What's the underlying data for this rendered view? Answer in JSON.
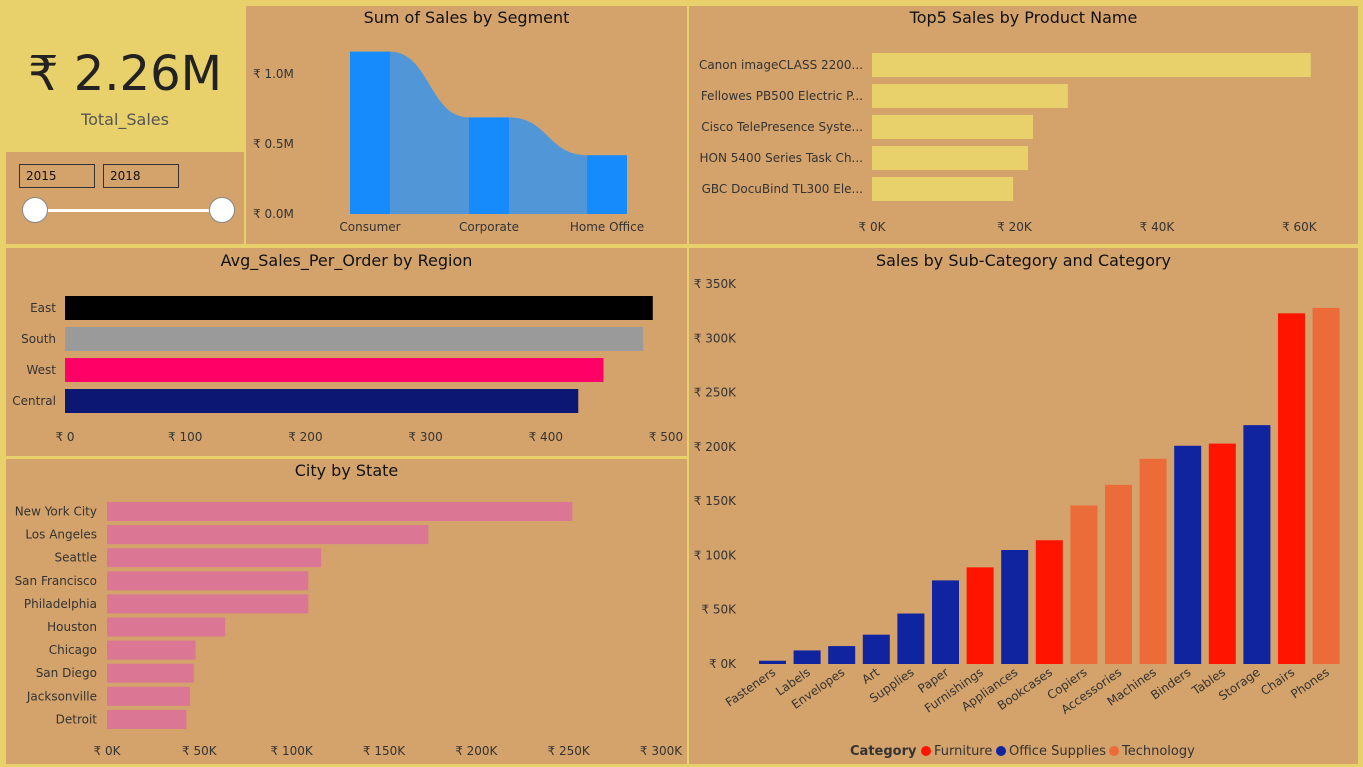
{
  "kpi": {
    "value": "₹ 2.26M",
    "label": "Total_Sales"
  },
  "filter": {
    "start_year": "2015",
    "end_year": "2018"
  },
  "colors": {
    "background": "#e8d06a",
    "panel": "#d4a36c",
    "segment_bar": "#168cfc",
    "segment_ribbon": "#5197d8",
    "top5_bar": "#e8d06a",
    "city_bar": "#db7694",
    "region_east": "#000000",
    "region_south": "#9a9a9a",
    "region_west": "#ff0066",
    "region_central": "#0c1673",
    "furniture": "#ff1400",
    "office_supplies": "#1024a0",
    "technology": "#eb6b39"
  },
  "chart_data": [
    {
      "id": "segment",
      "type": "bar",
      "title": "Sum of Sales by Segment",
      "categories": [
        "Consumer",
        "Corporate",
        "Home Office"
      ],
      "values": [
        1160000,
        690000,
        420000
      ],
      "yticks": [
        0,
        500000,
        1000000
      ],
      "ytick_labels": [
        "₹ 0.0M",
        "₹ 0.5M",
        "₹ 1.0M"
      ],
      "ylim": [
        0,
        1200000
      ]
    },
    {
      "id": "top5",
      "type": "bar",
      "orientation": "horizontal",
      "title": "Top5 Sales by Product Name",
      "categories": [
        "Canon imageCLASS 2200...",
        "Fellowes PB500 Electric P...",
        "Cisco TelePresence Syste...",
        "HON 5400 Series Task Ch...",
        "GBC DocuBind TL300 Ele..."
      ],
      "values": [
        61600,
        27500,
        22600,
        21900,
        19800
      ],
      "xticks": [
        0,
        20000,
        40000,
        60000
      ],
      "xtick_labels": [
        "₹ 0K",
        "₹ 20K",
        "₹ 40K",
        "₹ 60K"
      ],
      "xlim": [
        0,
        65000
      ]
    },
    {
      "id": "region",
      "type": "bar",
      "orientation": "horizontal",
      "title": "Avg_Sales_Per_Order by Region",
      "categories": [
        "East",
        "South",
        "West",
        "Central"
      ],
      "values": [
        489,
        481,
        448,
        427
      ],
      "xticks": [
        0,
        100,
        200,
        300,
        400,
        500
      ],
      "xtick_labels": [
        "₹ 0",
        "₹ 100",
        "₹ 200",
        "₹ 300",
        "₹ 400",
        "₹ 500"
      ],
      "xlim": [
        0,
        500
      ]
    },
    {
      "id": "city",
      "type": "bar",
      "orientation": "horizontal",
      "title": "City by State",
      "categories": [
        "New York City",
        "Los Angeles",
        "Seattle",
        "San Francisco",
        "Philadelphia",
        "Houston",
        "Chicago",
        "San Diego",
        "Jacksonville",
        "Detroit"
      ],
      "values": [
        252000,
        174000,
        116000,
        109000,
        109000,
        64000,
        48000,
        47000,
        45000,
        43000
      ],
      "xticks": [
        0,
        50000,
        100000,
        150000,
        200000,
        250000,
        300000
      ],
      "xtick_labels": [
        "₹ 0K",
        "₹ 50K",
        "₹ 100K",
        "₹ 150K",
        "₹ 200K",
        "₹ 250K",
        "₹ 300K"
      ],
      "xlim": [
        0,
        300000
      ]
    },
    {
      "id": "subcat",
      "type": "bar",
      "title": "Sales by Sub-Category and Category",
      "categories": [
        "Fasteners",
        "Labels",
        "Envelopes",
        "Art",
        "Supplies",
        "Paper",
        "Furnishings",
        "Appliances",
        "Bookcases",
        "Copiers",
        "Accessories",
        "Machines",
        "Binders",
        "Tables",
        "Storage",
        "Chairs",
        "Phones"
      ],
      "values": [
        3000,
        12500,
        16500,
        27000,
        46500,
        77000,
        89000,
        105000,
        114000,
        146000,
        165000,
        189000,
        201000,
        203000,
        220000,
        323000,
        328000
      ],
      "category_group": [
        "Office Supplies",
        "Office Supplies",
        "Office Supplies",
        "Office Supplies",
        "Office Supplies",
        "Office Supplies",
        "Furniture",
        "Office Supplies",
        "Furniture",
        "Technology",
        "Technology",
        "Technology",
        "Office Supplies",
        "Furniture",
        "Office Supplies",
        "Furniture",
        "Technology"
      ],
      "yticks": [
        0,
        50000,
        100000,
        150000,
        200000,
        250000,
        300000,
        350000
      ],
      "ytick_labels": [
        "₹ 0K",
        "₹ 50K",
        "₹ 100K",
        "₹ 150K",
        "₹ 200K",
        "₹ 250K",
        "₹ 300K",
        "₹ 350K"
      ],
      "ylim": [
        0,
        350000
      ],
      "legend": {
        "title": "Category",
        "placement": "bottom",
        "items": [
          {
            "name": "Furniture",
            "color": "#ff1400"
          },
          {
            "name": "Office Supplies",
            "color": "#1024a0"
          },
          {
            "name": "Technology",
            "color": "#eb6b39"
          }
        ]
      }
    }
  ]
}
